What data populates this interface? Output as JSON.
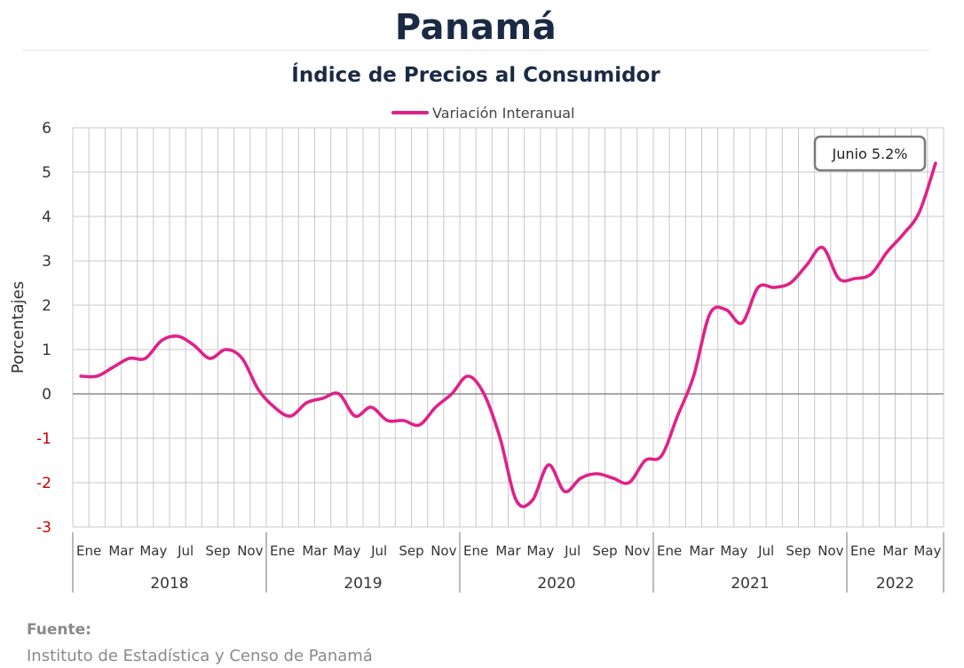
{
  "header": {
    "title": "Panamá",
    "subtitle": "Índice de Precios al Consumidor"
  },
  "footer": {
    "label": "Fuente:",
    "source": "Instituto de Estadística y Censo de Panamá"
  },
  "colors": {
    "series": "#e0218a",
    "title": "#1b2a44",
    "grid": "#c8c8c8",
    "negative_tick": "#cc0000"
  },
  "chart_data": {
    "type": "line",
    "title": "Índice de Precios al Consumidor",
    "ylabel": "Porcentajes",
    "xlabel": "",
    "ylim": [
      -3,
      6
    ],
    "yticks": [
      6,
      5,
      4,
      3,
      2,
      1,
      0,
      -1,
      -2,
      -3
    ],
    "grid": true,
    "legend": "top-center",
    "years": [
      "2018",
      "2019",
      "2020",
      "2021",
      "2022"
    ],
    "month_labels": [
      "Ene",
      "Mar",
      "May",
      "Jul",
      "Sep",
      "Nov"
    ],
    "series": [
      {
        "name": "Variación Interanual",
        "color": "#e0218a",
        "x": [
          "2018-01",
          "2018-02",
          "2018-03",
          "2018-04",
          "2018-05",
          "2018-06",
          "2018-07",
          "2018-08",
          "2018-09",
          "2018-10",
          "2018-11",
          "2018-12",
          "2019-01",
          "2019-02",
          "2019-03",
          "2019-04",
          "2019-05",
          "2019-06",
          "2019-07",
          "2019-08",
          "2019-09",
          "2019-10",
          "2019-11",
          "2019-12",
          "2020-01",
          "2020-02",
          "2020-03",
          "2020-04",
          "2020-05",
          "2020-06",
          "2020-07",
          "2020-08",
          "2020-09",
          "2020-10",
          "2020-11",
          "2020-12",
          "2021-01",
          "2021-02",
          "2021-03",
          "2021-04",
          "2021-05",
          "2021-06",
          "2021-07",
          "2021-08",
          "2021-09",
          "2021-10",
          "2021-11",
          "2021-12",
          "2022-01",
          "2022-02",
          "2022-03",
          "2022-04",
          "2022-05",
          "2022-06"
        ],
        "values": [
          0.4,
          0.4,
          0.6,
          0.8,
          0.8,
          1.2,
          1.3,
          1.1,
          0.8,
          1.0,
          0.8,
          0.1,
          -0.3,
          -0.5,
          -0.2,
          -0.1,
          0.0,
          -0.5,
          -0.3,
          -0.6,
          -0.6,
          -0.7,
          -0.3,
          0.0,
          0.4,
          0.0,
          -1.0,
          -2.4,
          -2.4,
          -1.6,
          -2.2,
          -1.9,
          -1.8,
          -1.9,
          -2.0,
          -1.5,
          -1.4,
          -0.5,
          0.4,
          1.8,
          1.9,
          1.6,
          2.4,
          2.4,
          2.5,
          2.9,
          3.3,
          2.6,
          2.6,
          2.7,
          3.2,
          3.6,
          4.1,
          5.2
        ]
      }
    ],
    "annotations": [
      {
        "text": "Junio 5.2%",
        "x": "2022-06",
        "y": 5.2
      }
    ]
  }
}
